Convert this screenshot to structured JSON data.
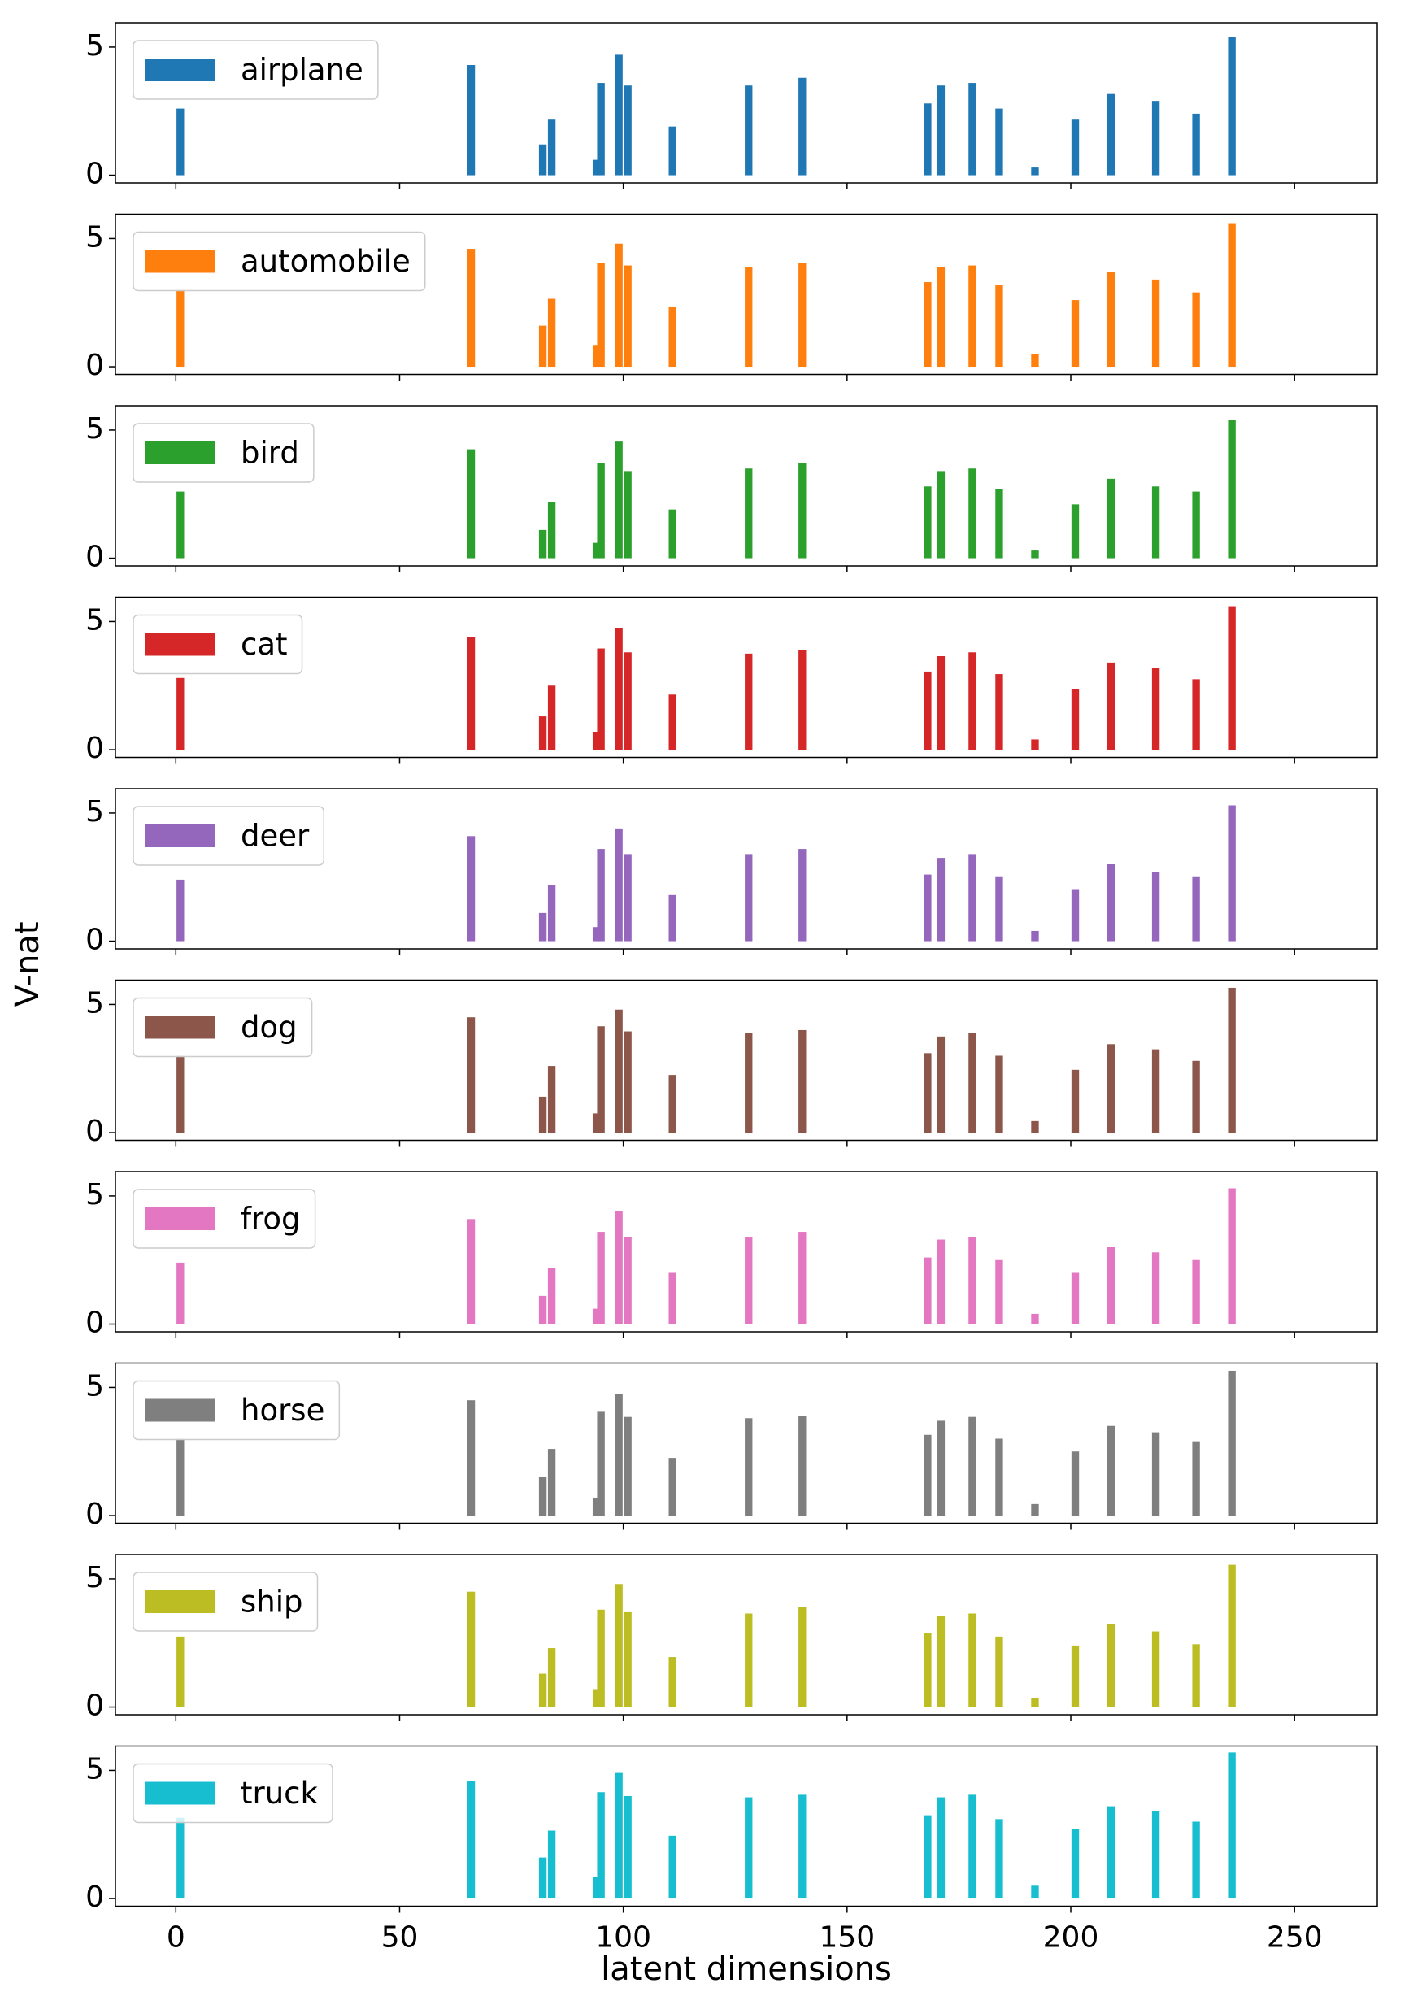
{
  "chart_data": {
    "type": "bar",
    "xlabel": "latent dimensions",
    "ylabel": "V-nat",
    "subplots": true,
    "legend": "upper left",
    "x": [
      1,
      66,
      82,
      84,
      94,
      95,
      99,
      101,
      111,
      128,
      140,
      168,
      171,
      178,
      184,
      192,
      201,
      209,
      219,
      228,
      236
    ],
    "xlim": [
      -13.5,
      268.5
    ],
    "xticks": [
      0,
      50,
      100,
      150,
      200,
      250
    ],
    "ylim": [
      -0.3,
      5.95
    ],
    "yticks": [
      0,
      5
    ],
    "series": [
      {
        "name": "airplane",
        "color": "#1f77b4",
        "values": [
          2.6,
          4.3,
          1.2,
          2.2,
          0.6,
          3.6,
          4.7,
          3.5,
          1.9,
          3.5,
          3.8,
          2.8,
          3.5,
          3.6,
          2.6,
          0.3,
          2.2,
          3.2,
          2.9,
          2.4,
          5.4
        ]
      },
      {
        "name": "automobile",
        "color": "#ff7f0e",
        "values": [
          3.0,
          4.6,
          1.6,
          2.65,
          0.85,
          4.05,
          4.8,
          3.95,
          2.35,
          3.9,
          4.05,
          3.3,
          3.9,
          3.95,
          3.2,
          0.5,
          2.6,
          3.7,
          3.4,
          2.9,
          5.6
        ]
      },
      {
        "name": "bird",
        "color": "#2ca02c",
        "values": [
          2.6,
          4.25,
          1.1,
          2.2,
          0.6,
          3.7,
          4.55,
          3.4,
          1.9,
          3.5,
          3.7,
          2.8,
          3.4,
          3.5,
          2.7,
          0.3,
          2.1,
          3.1,
          2.8,
          2.6,
          5.4
        ]
      },
      {
        "name": "cat",
        "color": "#d62728",
        "values": [
          2.8,
          4.4,
          1.3,
          2.5,
          0.7,
          3.95,
          4.75,
          3.8,
          2.15,
          3.75,
          3.9,
          3.05,
          3.65,
          3.8,
          2.95,
          0.4,
          2.35,
          3.4,
          3.2,
          2.75,
          5.6
        ]
      },
      {
        "name": "deer",
        "color": "#9467bd",
        "values": [
          2.4,
          4.1,
          1.1,
          2.2,
          0.55,
          3.6,
          4.4,
          3.4,
          1.8,
          3.4,
          3.6,
          2.6,
          3.25,
          3.4,
          2.5,
          0.4,
          2.0,
          3.0,
          2.7,
          2.5,
          5.3
        ]
      },
      {
        "name": "dog",
        "color": "#8c564b",
        "values": [
          3.0,
          4.5,
          1.4,
          2.6,
          0.75,
          4.15,
          4.8,
          3.95,
          2.25,
          3.9,
          4.0,
          3.1,
          3.75,
          3.9,
          3.0,
          0.45,
          2.45,
          3.45,
          3.25,
          2.8,
          5.65
        ]
      },
      {
        "name": "frog",
        "color": "#e377c2",
        "values": [
          2.4,
          4.1,
          1.1,
          2.2,
          0.6,
          3.6,
          4.4,
          3.4,
          2.0,
          3.4,
          3.6,
          2.6,
          3.3,
          3.4,
          2.5,
          0.4,
          2.0,
          3.0,
          2.8,
          2.5,
          5.3
        ]
      },
      {
        "name": "horse",
        "color": "#7f7f7f",
        "values": [
          3.0,
          4.5,
          1.5,
          2.6,
          0.7,
          4.05,
          4.75,
          3.85,
          2.25,
          3.8,
          3.9,
          3.15,
          3.7,
          3.85,
          3.0,
          0.45,
          2.5,
          3.5,
          3.25,
          2.9,
          5.65
        ]
      },
      {
        "name": "ship",
        "color": "#bcbd22",
        "values": [
          2.75,
          4.5,
          1.3,
          2.3,
          0.7,
          3.8,
          4.8,
          3.7,
          1.95,
          3.65,
          3.9,
          2.9,
          3.55,
          3.65,
          2.75,
          0.35,
          2.4,
          3.25,
          2.95,
          2.45,
          5.55
        ]
      },
      {
        "name": "truck",
        "color": "#17becf",
        "values": [
          3.15,
          4.6,
          1.6,
          2.65,
          0.85,
          4.15,
          4.9,
          4.0,
          2.45,
          3.95,
          4.05,
          3.25,
          3.95,
          4.05,
          3.1,
          0.5,
          2.7,
          3.6,
          3.4,
          3.0,
          5.7
        ]
      }
    ]
  }
}
